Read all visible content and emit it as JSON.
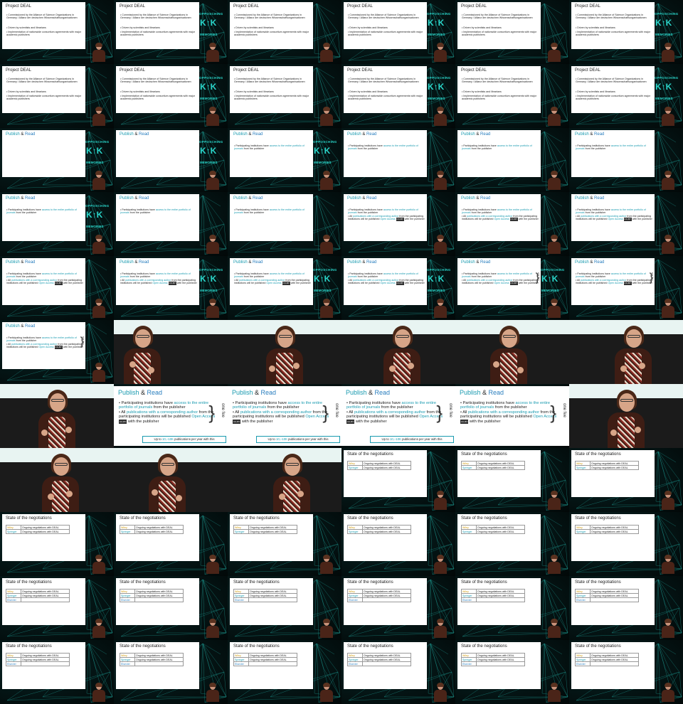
{
  "texts": {
    "deal_title": "Project DEAL",
    "deal_bullets": [
      "Commissioned by the Alliance of Science Organizations in Germany / Allianz der deutschen Wissenschaftsorganisationen",
      "Driven by scientists and librarians",
      "Implementation of nationwide consortium agreements with major academic publishers"
    ],
    "pub_title_a": "Publish",
    "pub_title_amp": " & ",
    "pub_title_b": "Read",
    "pub_b1_a": "Participating institutions have ",
    "pub_b1_hl": "access to the entire portfolio of journals",
    "pub_b1_b": " from the publisher",
    "pub_b2_a": "All ",
    "pub_b2_hl": "publications with a corresponding author",
    "pub_b2_b": " from the participating institutions will be published ",
    "pub_b2_hl2": "Open Access",
    "pub_b2_badge": "CC-BY",
    "pub_b2_c": " with the publisher",
    "brace_label": "one fee",
    "ribbon_a": "Up to ",
    "ribbon_hl": "10,–10K",
    "ribbon_b": " publications per year with this",
    "neg_title": "State of the negotiations",
    "neg_rows": [
      {
        "publisher": "Wiley",
        "status": "Ongoing negotiations with DEAL"
      },
      {
        "publisher": "Springer",
        "status": "Ongoing negotiations with DEAL"
      },
      {
        "publisher": "Elsevier",
        "status": ""
      }
    ],
    "logo_l1": "OPPOSCHING",
    "logo_l2": "K↑K",
    "logo_l3": "MEMORIES"
  },
  "frames": [
    {
      "type": "deal",
      "logo": false
    },
    {
      "type": "deal",
      "logo": true
    },
    {
      "type": "deal",
      "logo": false
    },
    {
      "type": "deal",
      "logo": true
    },
    {
      "type": "deal",
      "logo": false
    },
    {
      "type": "deal",
      "logo": true
    },
    {
      "type": "deal",
      "logo": false
    },
    {
      "type": "deal",
      "logo": true
    },
    {
      "type": "deal",
      "logo": false
    },
    {
      "type": "deal",
      "logo": true
    },
    {
      "type": "deal",
      "logo": false
    },
    {
      "type": "deal",
      "logo": true
    },
    {
      "type": "pub",
      "stage": 0,
      "logo": true
    },
    {
      "type": "pub",
      "stage": 0,
      "logo": true
    },
    {
      "type": "pub",
      "stage": 1,
      "logo": true
    },
    {
      "type": "pub",
      "stage": 1,
      "logo": false
    },
    {
      "type": "pub",
      "stage": 1,
      "logo": false
    },
    {
      "type": "pub",
      "stage": 1,
      "logo": false
    },
    {
      "type": "pub",
      "stage": 1,
      "logo": true
    },
    {
      "type": "pub",
      "stage": 1,
      "logo": false
    },
    {
      "type": "pub",
      "stage": 1,
      "logo": false
    },
    {
      "type": "pub",
      "stage": 2,
      "logo": false
    },
    {
      "type": "pub",
      "stage": 2,
      "logo": false
    },
    {
      "type": "pub",
      "stage": 2,
      "logo": false
    },
    {
      "type": "pub",
      "stage": 2,
      "logo": false
    },
    {
      "type": "pub",
      "stage": 2,
      "logo": true
    },
    {
      "type": "pub",
      "stage": 2,
      "logo": true
    },
    {
      "type": "pub",
      "stage": 2,
      "logo": true
    },
    {
      "type": "pub",
      "stage": 3,
      "logo": true
    },
    {
      "type": "pub",
      "stage": 3,
      "logo": false
    },
    {
      "type": "pub",
      "stage": 3,
      "logo": false
    },
    {
      "type": "speaker",
      "pose": 0
    },
    {
      "type": "speaker",
      "pose": 1
    },
    {
      "type": "speaker",
      "pose": 2
    },
    {
      "type": "speaker",
      "pose": 3
    },
    {
      "type": "speaker",
      "pose": 4
    },
    {
      "type": "speaker",
      "pose": 5
    },
    {
      "type": "pubfull"
    },
    {
      "type": "pubfull"
    },
    {
      "type": "pubfull"
    },
    {
      "type": "pubfull",
      "noribbon": true
    },
    {
      "type": "speaker",
      "pose": 1
    },
    {
      "type": "speaker",
      "pose": 2
    },
    {
      "type": "speaker",
      "pose": 3
    },
    {
      "type": "speaker",
      "pose": 4
    },
    {
      "type": "neg",
      "rows": 2
    },
    {
      "type": "neg",
      "rows": 2
    },
    {
      "type": "neg",
      "rows": 2
    },
    {
      "type": "neg",
      "rows": 2
    },
    {
      "type": "neg",
      "rows": 2
    },
    {
      "type": "neg",
      "rows": 2
    },
    {
      "type": "neg",
      "rows": 2
    },
    {
      "type": "neg",
      "rows": 2
    },
    {
      "type": "neg",
      "rows": 2
    },
    {
      "type": "neg",
      "rows": 3
    },
    {
      "type": "neg",
      "rows": 3
    },
    {
      "type": "neg",
      "rows": 3
    },
    {
      "type": "neg",
      "rows": 3
    },
    {
      "type": "neg",
      "rows": 3
    },
    {
      "type": "neg",
      "rows": 3
    },
    {
      "type": "neg",
      "rows": 3
    },
    {
      "type": "neg",
      "rows": 3
    },
    {
      "type": "neg",
      "rows": 3
    },
    {
      "type": "neg",
      "rows": 3
    },
    {
      "type": "neg",
      "rows": 3
    },
    {
      "type": "neg",
      "rows": 3
    }
  ],
  "colors": {
    "accent": "#1a9bb0",
    "accent2": "#2a7fbf",
    "wiley": "#d4a017",
    "logo": "#2ad4c8"
  }
}
